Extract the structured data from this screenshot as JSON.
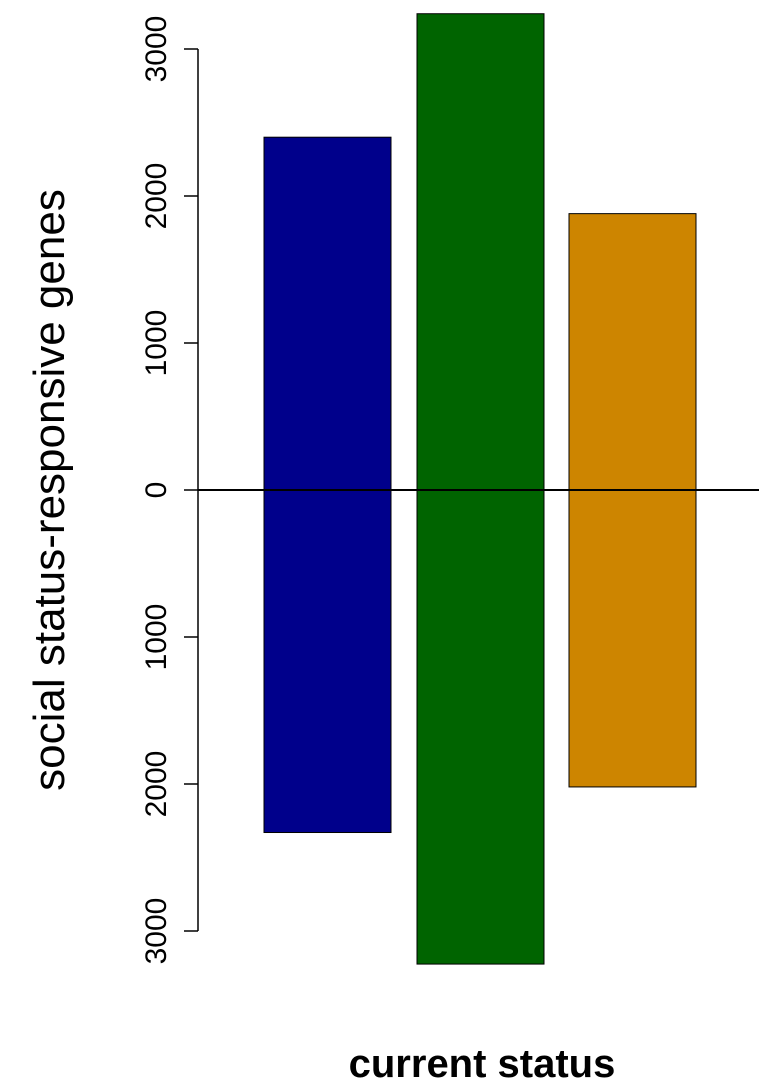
{
  "chart_data": {
    "type": "bar",
    "orientation": "diverging-vertical",
    "xlabel": "current status",
    "ylabel": "social status-responsive genes",
    "ylim": [
      -3300,
      3250
    ],
    "yticks": [
      {
        "value": 3000,
        "label": "3000"
      },
      {
        "value": 2000,
        "label": "2000"
      },
      {
        "value": 1000,
        "label": "1000"
      },
      {
        "value": 0,
        "label": "0"
      },
      {
        "value": -1000,
        "label": "1000"
      },
      {
        "value": -2000,
        "label": "2000"
      },
      {
        "value": -3000,
        "label": "3000"
      }
    ],
    "bars": [
      {
        "up": 2400,
        "down": 2330,
        "color": "#00008B"
      },
      {
        "up": 3240,
        "down": 3225,
        "color": "#006400"
      },
      {
        "up": 1880,
        "down": 2020,
        "color": "#CD8500"
      }
    ],
    "baseline": true,
    "grid": false,
    "legend": "none"
  }
}
